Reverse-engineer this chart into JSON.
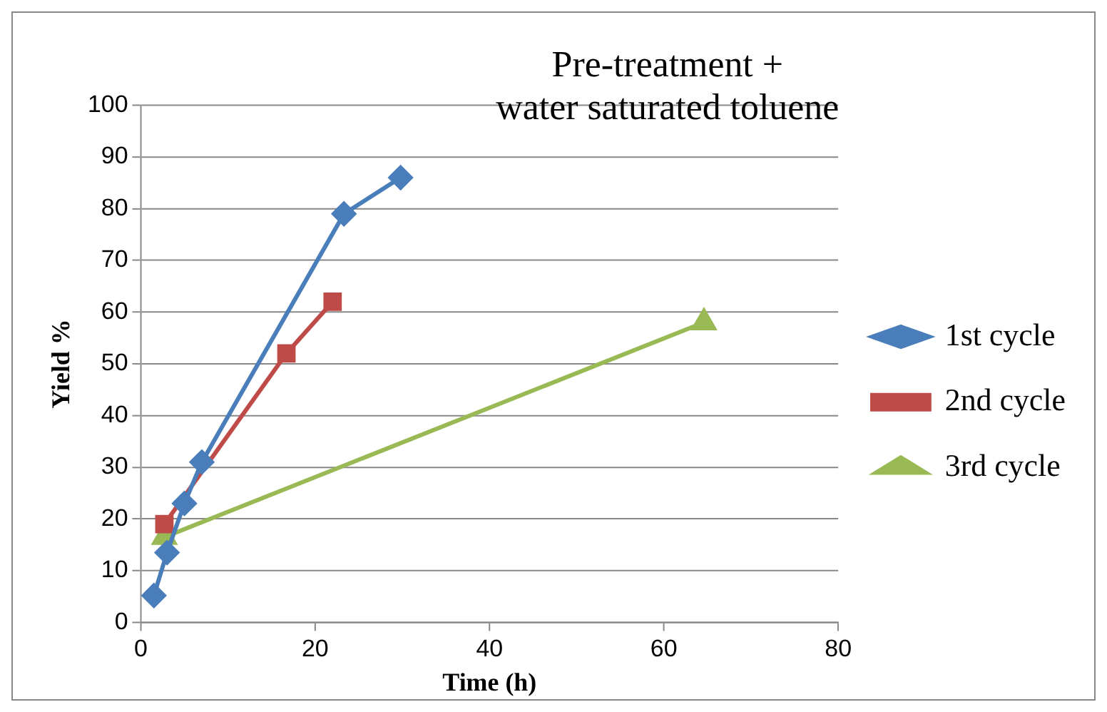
{
  "chart_data": {
    "type": "line",
    "title": "Pre-treatment +\nwater saturated toluene",
    "xlabel": "Time (h)",
    "ylabel": "Yield %",
    "xlim": [
      0,
      80
    ],
    "xticks": [
      0,
      20,
      40,
      60,
      80
    ],
    "ylim": [
      0,
      100
    ],
    "yticks": [
      0,
      10,
      20,
      30,
      40,
      50,
      60,
      70,
      80,
      90,
      100
    ],
    "grid": "y",
    "legend": "right",
    "line_style": "solid",
    "series": [
      {
        "name": "1st cycle",
        "color": "#4a7ebb",
        "marker": "diamond",
        "x": [
          1.5,
          3,
          5,
          7,
          23.3,
          29.8
        ],
        "values": [
          5.2,
          13.5,
          23,
          31,
          79,
          86
        ]
      },
      {
        "name": "2nd cycle",
        "color": "#be4b48",
        "marker": "square",
        "x": [
          2.7,
          16.7,
          22
        ],
        "values": [
          19,
          52,
          62
        ]
      },
      {
        "name": "3rd cycle",
        "color": "#98b954",
        "marker": "triangle",
        "x": [
          2.7,
          64.6
        ],
        "values": [
          16.5,
          58
        ]
      }
    ]
  }
}
